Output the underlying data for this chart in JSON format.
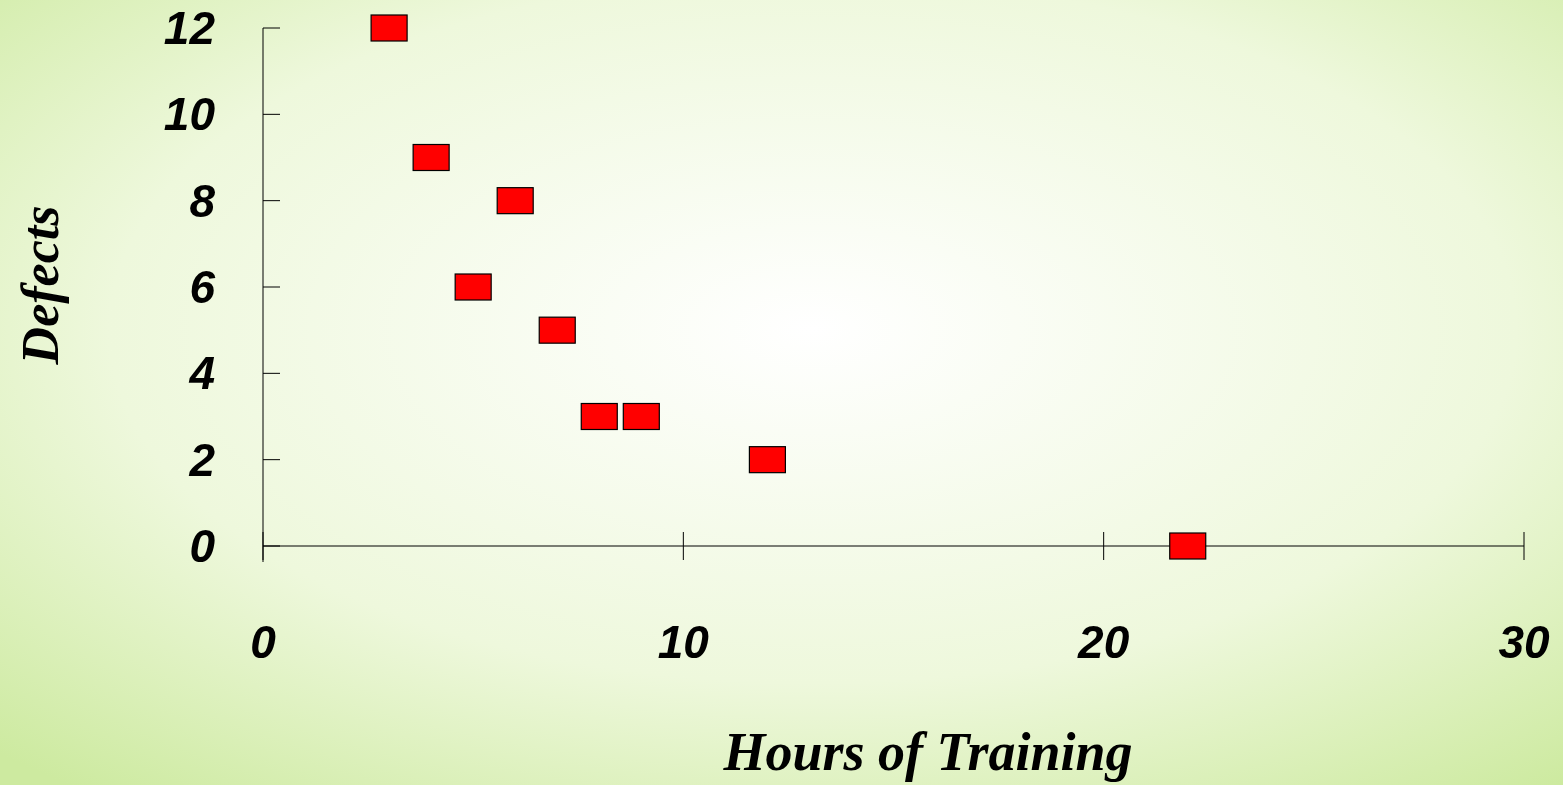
{
  "chart_data": {
    "type": "scatter",
    "xlabel": "Hours of Training",
    "ylabel": "Defects",
    "x": [
      3,
      4,
      5,
      6,
      7,
      8,
      9,
      12,
      22
    ],
    "series": [
      {
        "color": "#ff0000",
        "values": [
          12,
          9,
          6,
          8,
          5,
          3,
          3,
          2,
          0
        ]
      }
    ],
    "xlim": [
      0,
      30
    ],
    "xticks": [
      0,
      10,
      20,
      30
    ],
    "ylim": [
      0,
      12
    ],
    "yticks": [
      0,
      2,
      4,
      6,
      8,
      10,
      12
    ],
    "marker": "square",
    "grid": false
  }
}
